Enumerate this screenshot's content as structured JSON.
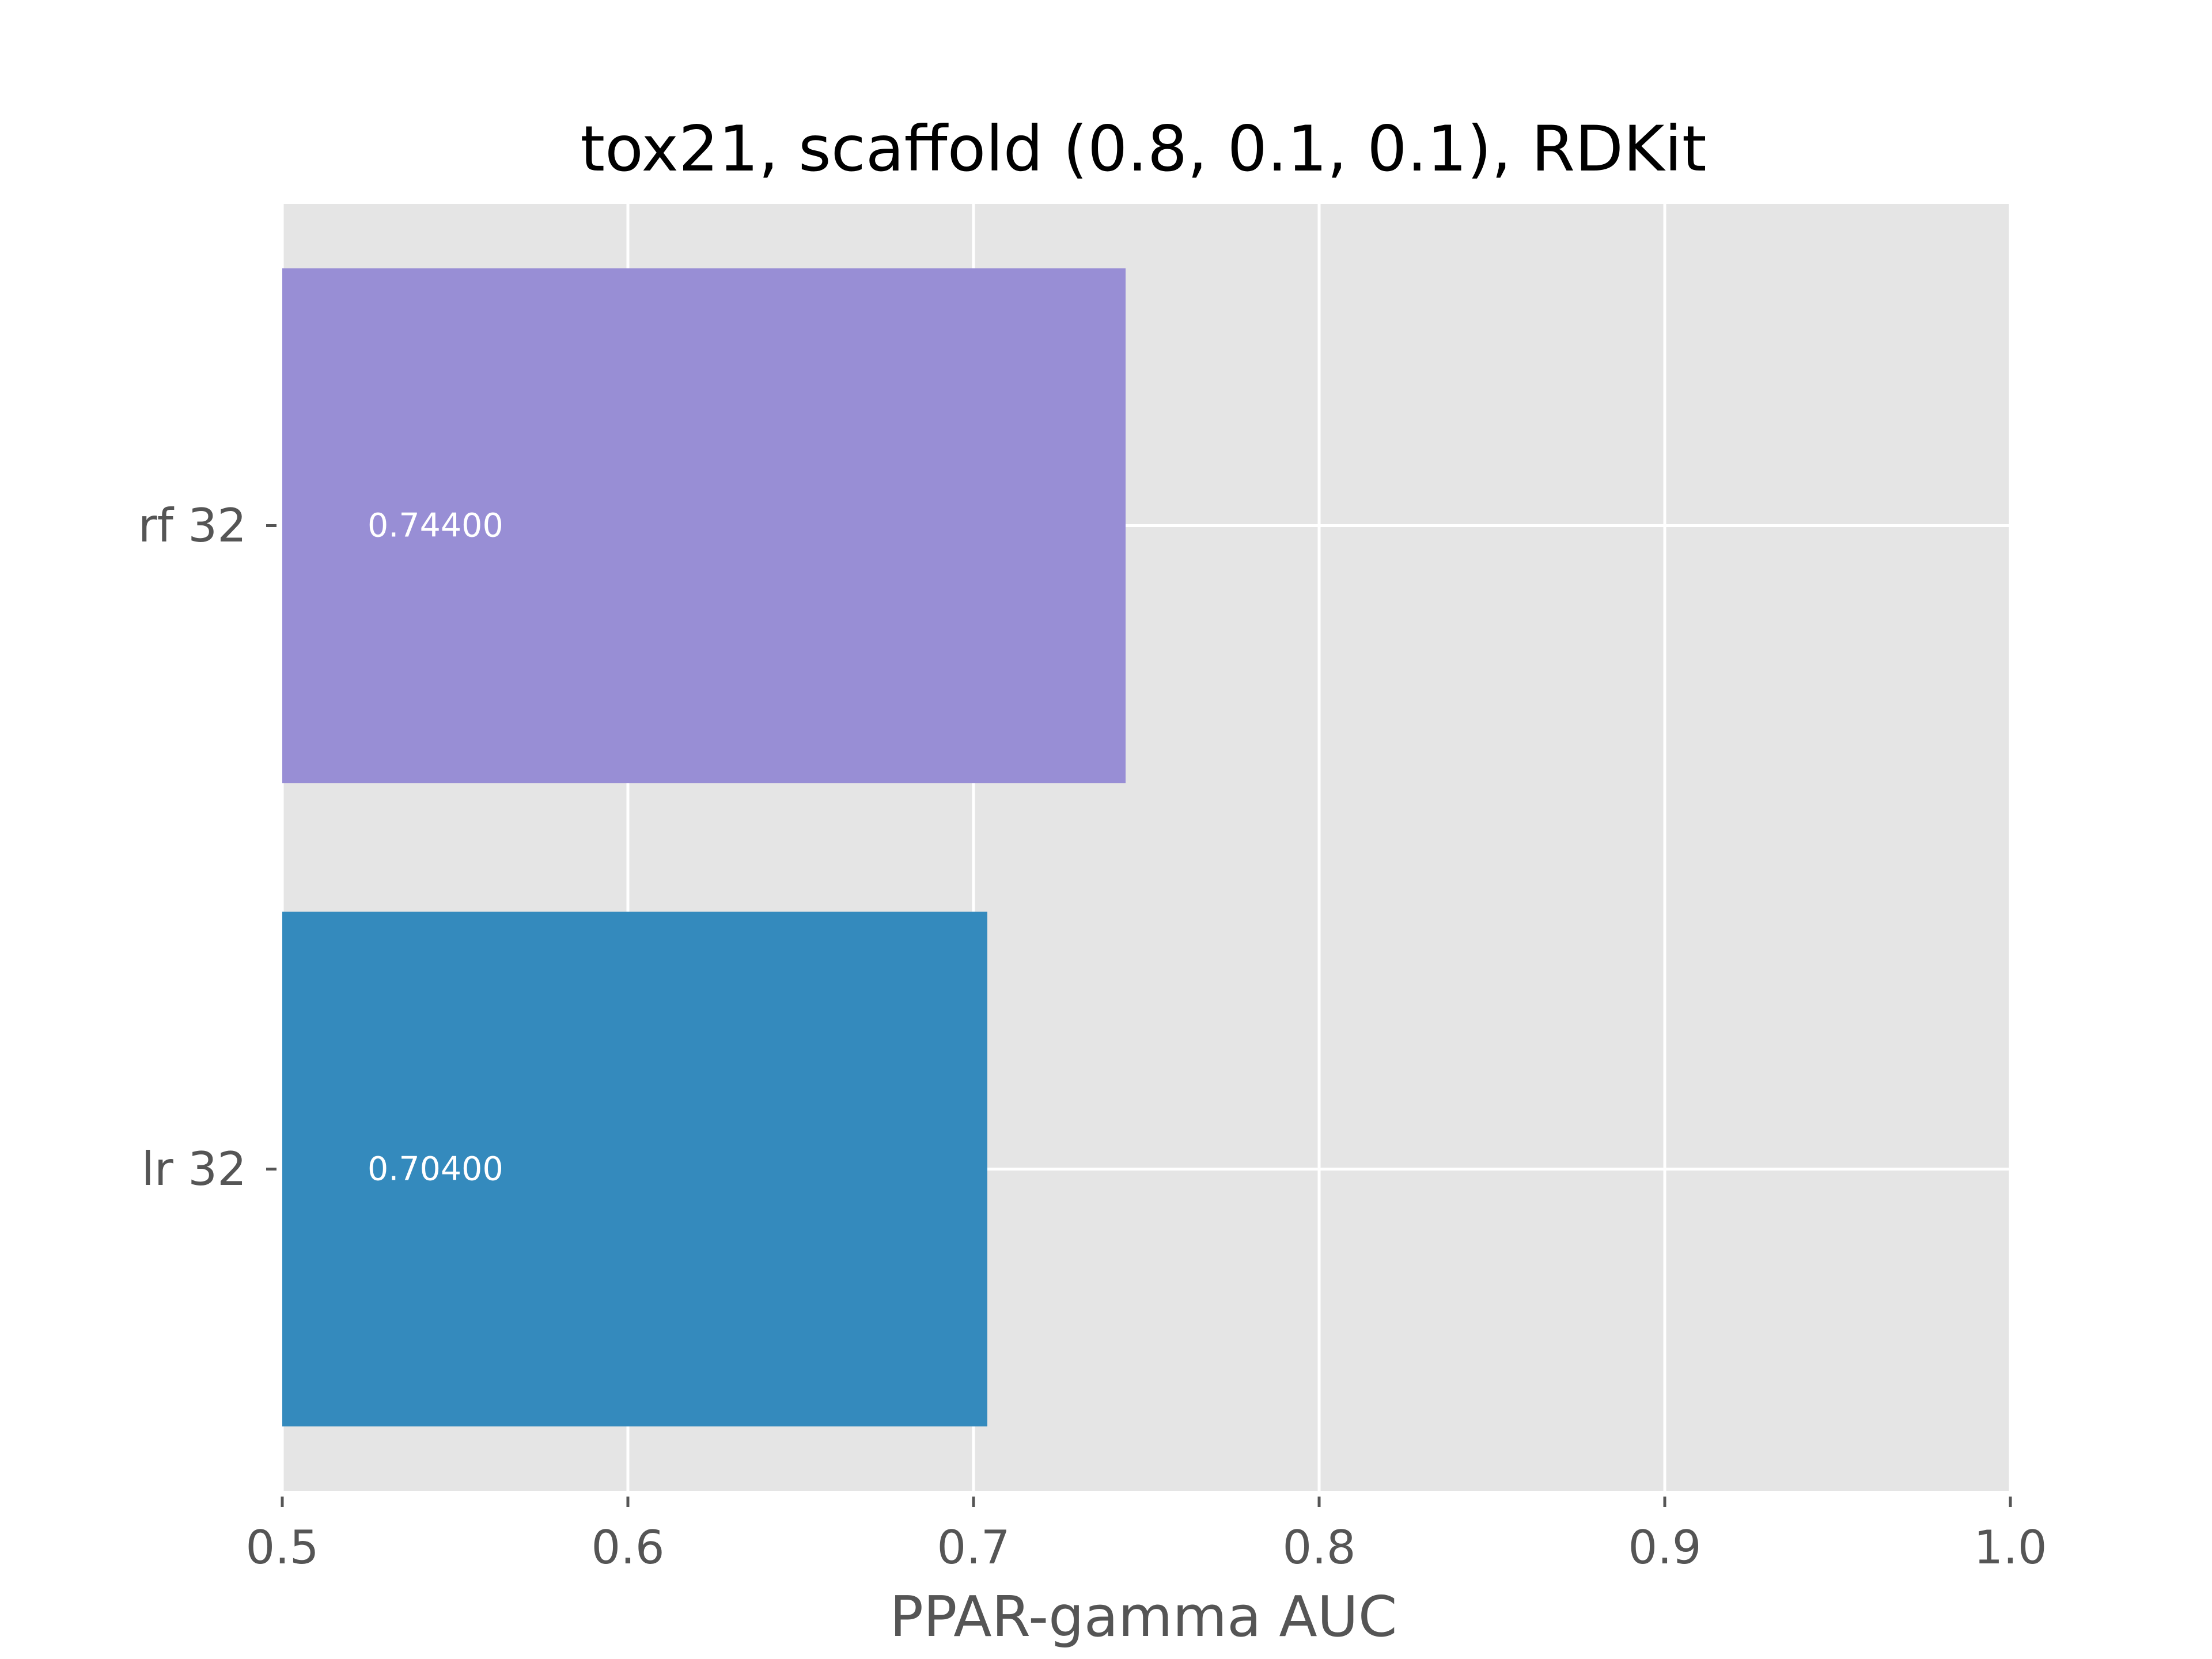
{
  "chart_data": {
    "type": "bar",
    "orientation": "horizontal",
    "title": "tox21, scaffold (0.8, 0.1, 0.1), RDKit",
    "xlabel": "PPAR-gamma AUC",
    "ylabel": "",
    "categories": [
      "rf 32",
      "lr 32"
    ],
    "values": [
      0.744,
      0.704
    ],
    "data_labels": [
      "0.74400",
      "0.70400"
    ],
    "colors": [
      "#988ED5",
      "#348ABD"
    ],
    "xlim": [
      0.5,
      1.0
    ],
    "xticks": [
      0.5,
      0.6,
      0.7,
      0.8,
      0.9,
      1.0
    ],
    "xtick_labels": [
      "0.5",
      "0.6",
      "0.7",
      "0.8",
      "0.9",
      "1.0"
    ],
    "grid": true,
    "background_color": "#E5E5E5",
    "grid_color": "#FFFFFF"
  }
}
